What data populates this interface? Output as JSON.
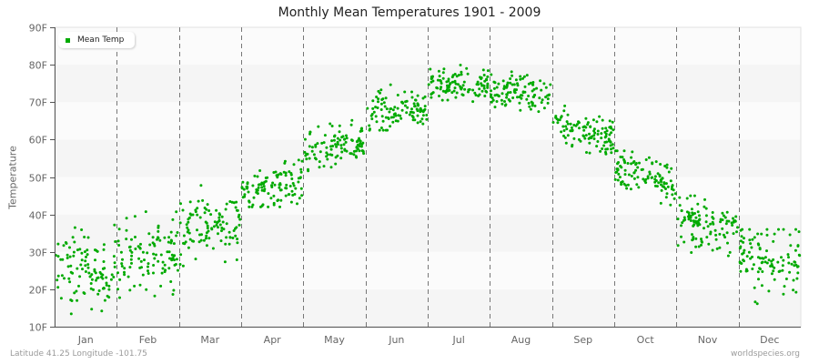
{
  "title": "Monthly Mean Temperatures 1901 - 2009",
  "y_axis_label": "Temperature",
  "legend": {
    "label": "Mean Temp",
    "color": "#00aa00"
  },
  "footer": {
    "location": "Latitude 41.25 Longitude -101.75",
    "source": "worldspecies.org"
  },
  "colors": {
    "dot": "#00aa00",
    "band_dark": "#f5f5f5",
    "band_light": "#fbfbfb",
    "axis": "#555555",
    "divider": "#777777"
  },
  "chart_data": {
    "type": "scatter",
    "title": "Monthly Mean Temperatures 1901 - 2009",
    "xlabel": "",
    "ylabel": "Temperature",
    "ylim": [
      10,
      90
    ],
    "y_ticks": [
      "10F",
      "20F",
      "30F",
      "40F",
      "50F",
      "60F",
      "70F",
      "80F",
      "90F"
    ],
    "categories": [
      "Jan",
      "Feb",
      "Mar",
      "Apr",
      "May",
      "Jun",
      "Jul",
      "Aug",
      "Sep",
      "Oct",
      "Nov",
      "Dec"
    ],
    "grid": "alternating horizontal bands, dashed vertical month dividers",
    "legend_position": "top-left",
    "points_per_month": 109,
    "series": [
      {
        "name": "Mean Temp",
        "monthly_summary": [
          {
            "month": "Jan",
            "mean": 25.0,
            "spread": 5.0,
            "min": 10.5,
            "max": 38.0
          },
          {
            "month": "Feb",
            "mean": 29.0,
            "spread": 5.0,
            "min": 13.0,
            "max": 41.5
          },
          {
            "month": "Mar",
            "mean": 37.0,
            "spread": 4.2,
            "min": 25.5,
            "max": 49.5
          },
          {
            "month": "Apr",
            "mean": 47.5,
            "spread": 3.0,
            "min": 42.0,
            "max": 56.0
          },
          {
            "month": "May",
            "mean": 57.5,
            "spread": 2.8,
            "min": 51.0,
            "max": 67.0
          },
          {
            "month": "Jun",
            "mean": 68.0,
            "spread": 2.8,
            "min": 62.5,
            "max": 76.5
          },
          {
            "month": "Jul",
            "mean": 75.0,
            "spread": 2.0,
            "min": 70.0,
            "max": 80.5
          },
          {
            "month": "Aug",
            "mean": 73.0,
            "spread": 2.2,
            "min": 66.0,
            "max": 79.5
          },
          {
            "month": "Sep",
            "mean": 62.5,
            "spread": 2.8,
            "min": 54.0,
            "max": 69.0
          },
          {
            "month": "Oct",
            "mean": 50.5,
            "spread": 3.0,
            "min": 41.0,
            "max": 57.0
          },
          {
            "month": "Nov",
            "mean": 37.0,
            "spread": 3.2,
            "min": 26.0,
            "max": 45.0
          },
          {
            "month": "Dec",
            "mean": 27.5,
            "spread": 4.8,
            "min": 12.0,
            "max": 36.0
          }
        ]
      }
    ]
  }
}
